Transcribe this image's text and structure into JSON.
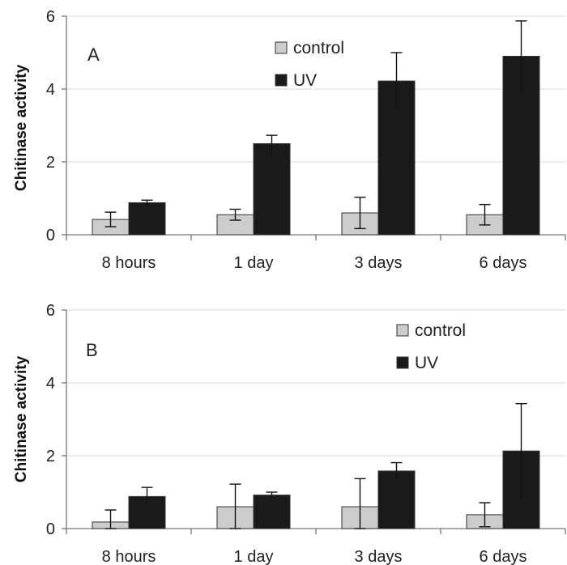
{
  "colors": {
    "control": "#cccccc",
    "uv": "#1a1a1a",
    "error": "#111111"
  },
  "chart_data": [
    {
      "type": "bar",
      "panel_label": "A",
      "ylabel": "Chitinase activity",
      "xlabel": "",
      "ylim": [
        0,
        6
      ],
      "yticks": [
        "0",
        "2",
        "4",
        "6"
      ],
      "grid": true,
      "legend_position": "top-center",
      "categories": [
        "8 hours",
        "1 day",
        "3 days",
        "6 days"
      ],
      "series": [
        {
          "name": "control",
          "values": [
            0.42,
            0.55,
            0.6,
            0.55
          ],
          "errors": [
            0.2,
            0.15,
            0.43,
            0.28
          ]
        },
        {
          "name": "UV",
          "values": [
            0.88,
            2.5,
            4.22,
            4.9
          ],
          "errors": [
            0.07,
            0.23,
            0.78,
            0.97
          ]
        }
      ]
    },
    {
      "type": "bar",
      "panel_label": "B",
      "ylabel": "Chitinase activity",
      "xlabel": "",
      "ylim": [
        0,
        6
      ],
      "yticks": [
        "0",
        "2",
        "4",
        "6"
      ],
      "grid": true,
      "legend_position": "top-right",
      "categories": [
        "8 hours",
        "1 day",
        "3 days",
        "6 days"
      ],
      "series": [
        {
          "name": "control",
          "values": [
            0.18,
            0.6,
            0.6,
            0.38
          ],
          "errors": [
            0.33,
            0.62,
            0.77,
            0.33
          ]
        },
        {
          "name": "UV",
          "values": [
            0.88,
            0.92,
            1.58,
            2.13
          ],
          "errors": [
            0.25,
            0.08,
            0.23,
            1.3
          ]
        }
      ]
    }
  ]
}
